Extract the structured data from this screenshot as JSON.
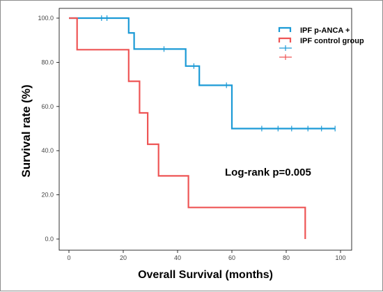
{
  "chart_data": {
    "type": "line",
    "subtype": "kaplan-meier step",
    "title": "",
    "xlabel": "Overall Survival (months)",
    "ylabel": "Survival rate (%)",
    "xlim": [
      0,
      100
    ],
    "ylim": [
      0,
      100
    ],
    "x_ticks": [
      "0",
      "20",
      "40",
      "60",
      "80",
      "100"
    ],
    "y_ticks": [
      "0.0",
      "20.0",
      "40.0",
      "60.0",
      "80.0",
      "100.0"
    ],
    "grid": false,
    "legend_position": "top-right",
    "annotation": "Log-rank p=0.005",
    "series": [
      {
        "name": "IPF p-ANCA +",
        "color": "#1b9ad6",
        "steps": [
          [
            0,
            100
          ],
          [
            22,
            93.3
          ],
          [
            24,
            86
          ],
          [
            43,
            78.3
          ],
          [
            48,
            69.6
          ],
          [
            60,
            50
          ],
          [
            98,
            50
          ]
        ],
        "censored": [
          [
            12,
            100
          ],
          [
            14,
            100
          ],
          [
            35,
            86
          ],
          [
            46,
            78.3
          ],
          [
            58,
            69.6
          ],
          [
            71,
            50
          ],
          [
            77,
            50
          ],
          [
            82,
            50
          ],
          [
            88,
            50
          ],
          [
            93,
            50
          ],
          [
            98,
            50
          ]
        ]
      },
      {
        "name": "IPF control group",
        "color": "#ee5555",
        "steps": [
          [
            0,
            100
          ],
          [
            3,
            85.7
          ],
          [
            22,
            71.4
          ],
          [
            26,
            57.1
          ],
          [
            29,
            42.9
          ],
          [
            33,
            28.6
          ],
          [
            44,
            14.3
          ],
          [
            87,
            0
          ]
        ],
        "censored": []
      }
    ],
    "legend_extra_marks": [
      {
        "color": "#1b9ad6"
      },
      {
        "color": "#ee5555"
      }
    ]
  }
}
